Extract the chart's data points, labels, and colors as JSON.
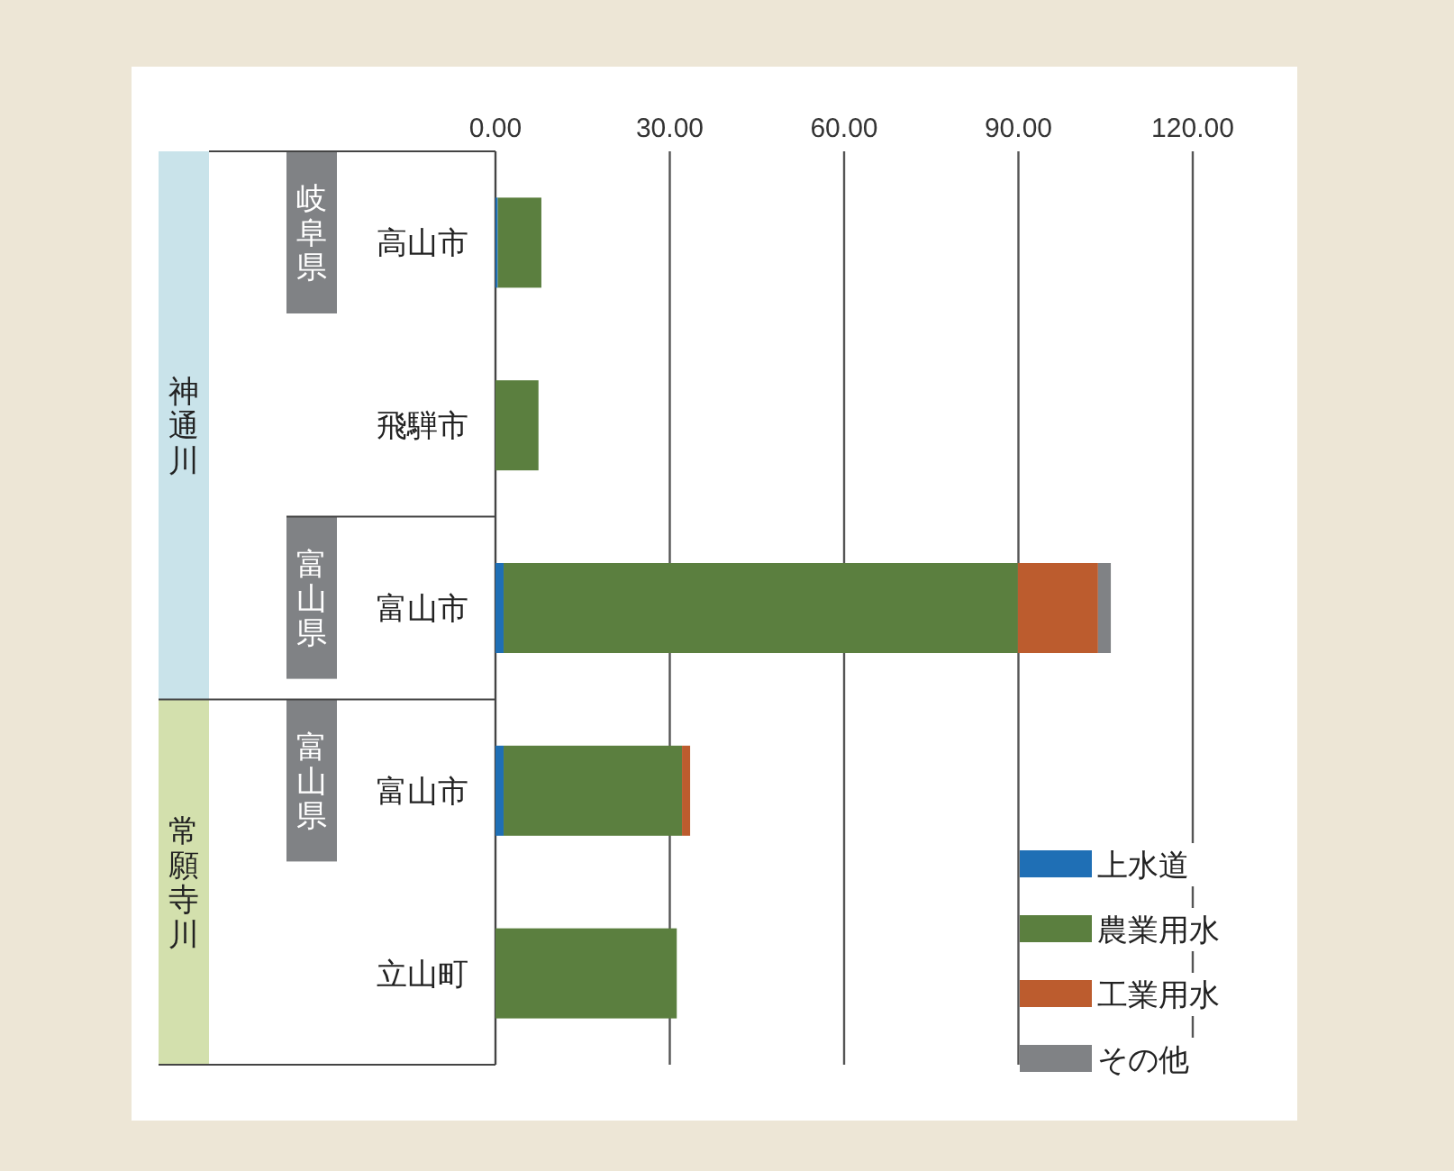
{
  "chart_data": {
    "type": "bar",
    "orientation": "horizontal",
    "stacked": true,
    "categories": [
      "高山市",
      "飛騨市",
      "富山市",
      "富山市",
      "立山町"
    ],
    "series": [
      {
        "name": "上水道",
        "color": "#1f6fb5",
        "values": [
          0.4,
          null,
          1.4,
          1.4,
          null
        ]
      },
      {
        "name": "農業用水",
        "color": "#5b7f3f",
        "values": [
          7.5,
          7.4,
          88.5,
          30.7,
          31.2
        ]
      },
      {
        "name": "工業用水",
        "color": "#bc5c2e",
        "values": [
          null,
          null,
          13.8,
          1.4,
          null
        ]
      },
      {
        "name": "その他",
        "color": "#808285",
        "values": [
          null,
          null,
          2.2,
          null,
          null
        ]
      }
    ],
    "xlim": [
      0,
      120
    ],
    "xticks": [
      {
        "value": 0,
        "label": "0.00"
      },
      {
        "value": 30,
        "label": "30.00"
      },
      {
        "value": 60,
        "label": "60.00"
      },
      {
        "value": 90,
        "label": "90.00"
      },
      {
        "value": 120,
        "label": "120.00"
      }
    ],
    "grid": "x",
    "legend": "bottom right",
    "annotations": [
      "神通川",
      "常願寺川",
      "岐阜県",
      "富山県",
      "富山県"
    ]
  }
}
